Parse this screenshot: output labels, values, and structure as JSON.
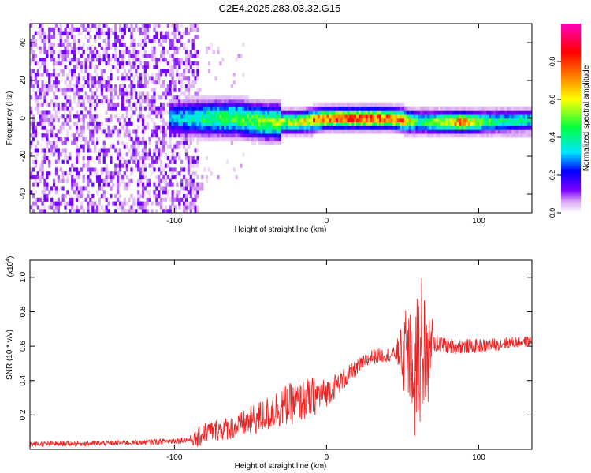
{
  "title": "C2E4.2025.283.03.32.G15",
  "chart_data": [
    {
      "type": "heatmap",
      "title": "C2E4.2025.283.03.32.G15",
      "xlabel": "Height of straight line (km)",
      "ylabel": "Frequency (Hz)",
      "xlim": [
        -195,
        135
      ],
      "ylim": [
        -50,
        50
      ],
      "x_ticks": [
        -100,
        0,
        100
      ],
      "y_ticks": [
        -40,
        -20,
        0,
        20,
        40
      ],
      "x_tick_labels": [
        "-100",
        "0",
        "100"
      ],
      "y_tick_labels": [
        "-40",
        "-20",
        "0",
        "20",
        "40"
      ],
      "colorbar": {
        "label": "Normalized spectral amplitude",
        "range": [
          0,
          1
        ],
        "ticks": [
          0.0,
          0.2,
          0.4,
          0.6,
          0.8
        ],
        "tick_labels": [
          "0.0",
          "0.2",
          "0.4",
          "0.6",
          "0.8"
        ],
        "colors": [
          "#ffffff",
          "#d9a6f2",
          "#7b00ff",
          "#0000ff",
          "#00e5ff",
          "#00ff40",
          "#ffff00",
          "#ff8000",
          "#ff0000",
          "#ff00c0"
        ]
      },
      "ridge": {
        "frequency_hz": [
          {
            "x": -100,
            "y": 0
          },
          {
            "x": -60,
            "y": 0
          },
          {
            "x": -40,
            "y": -2
          },
          {
            "x": -20,
            "y": -2
          },
          {
            "x": 0,
            "y": 0
          },
          {
            "x": 40,
            "y": 0
          },
          {
            "x": 60,
            "y": -2
          },
          {
            "x": 80,
            "y": -2
          },
          {
            "x": 100,
            "y": -2
          },
          {
            "x": 135,
            "y": -1
          }
        ],
        "peak_amplitude": [
          {
            "x": -100,
            "y": 0.35
          },
          {
            "x": -80,
            "y": 0.5
          },
          {
            "x": -60,
            "y": 0.55
          },
          {
            "x": -40,
            "y": 0.6
          },
          {
            "x": -20,
            "y": 0.7
          },
          {
            "x": -5,
            "y": 0.9
          },
          {
            "x": 10,
            "y": 0.95
          },
          {
            "x": 30,
            "y": 0.95
          },
          {
            "x": 50,
            "y": 0.85
          },
          {
            "x": 60,
            "y": 0.5
          },
          {
            "x": 70,
            "y": 0.6
          },
          {
            "x": 90,
            "y": 0.9
          },
          {
            "x": 100,
            "y": 0.6
          },
          {
            "x": 110,
            "y": 0.5
          },
          {
            "x": 135,
            "y": 0.45
          }
        ],
        "noise_region_x": [
          -195,
          -85
        ]
      }
    },
    {
      "type": "line",
      "xlabel": "Height of straight line (km)",
      "ylabel": "SNR (10 * v/v)",
      "y_multiplier_label": "(x10",
      "y_multiplier_exp": "4",
      "xlim": [
        -195,
        135
      ],
      "ylim": [
        0,
        1.1
      ],
      "x_ticks": [
        -100,
        0,
        100
      ],
      "x_tick_labels": [
        "-100",
        "0",
        "100"
      ],
      "y_ticks": [
        0.2,
        0.4,
        0.6,
        0.8,
        1.0
      ],
      "y_tick_labels": [
        "0.2",
        "0.4",
        "0.6",
        "0.8",
        "1.0"
      ],
      "color": "#ee2222",
      "series": [
        {
          "values": [
            {
              "x": -195,
              "y": 0.03
            },
            {
              "x": -150,
              "y": 0.035
            },
            {
              "x": -120,
              "y": 0.04
            },
            {
              "x": -100,
              "y": 0.05
            },
            {
              "x": -85,
              "y": 0.06
            },
            {
              "x": -80,
              "y": 0.1
            },
            {
              "x": -60,
              "y": 0.13
            },
            {
              "x": -40,
              "y": 0.2
            },
            {
              "x": -30,
              "y": 0.25
            },
            {
              "x": -20,
              "y": 0.27
            },
            {
              "x": -10,
              "y": 0.3
            },
            {
              "x": 0,
              "y": 0.33
            },
            {
              "x": 10,
              "y": 0.4
            },
            {
              "x": 20,
              "y": 0.47
            },
            {
              "x": 30,
              "y": 0.54
            },
            {
              "x": 40,
              "y": 0.55
            },
            {
              "x": 50,
              "y": 0.56
            },
            {
              "x": 55,
              "y": 0.6
            },
            {
              "x": 60,
              "y": 0.55
            },
            {
              "x": 65,
              "y": 0.62
            },
            {
              "x": 70,
              "y": 0.62
            },
            {
              "x": 80,
              "y": 0.6
            },
            {
              "x": 100,
              "y": 0.6
            },
            {
              "x": 120,
              "y": 0.62
            },
            {
              "x": 135,
              "y": 0.63
            }
          ],
          "noise": [
            {
              "x": -195,
              "y": 0.015
            },
            {
              "x": -120,
              "y": 0.015
            },
            {
              "x": -90,
              "y": 0.02
            },
            {
              "x": -85,
              "y": 0.06
            },
            {
              "x": -60,
              "y": 0.07
            },
            {
              "x": -30,
              "y": 0.12
            },
            {
              "x": -10,
              "y": 0.12
            },
            {
              "x": 0,
              "y": 0.08
            },
            {
              "x": 20,
              "y": 0.05
            },
            {
              "x": 45,
              "y": 0.04
            },
            {
              "x": 55,
              "y": 0.32
            },
            {
              "x": 62,
              "y": 0.45
            },
            {
              "x": 66,
              "y": 0.35
            },
            {
              "x": 70,
              "y": 0.05
            },
            {
              "x": 135,
              "y": 0.03
            }
          ]
        }
      ]
    }
  ]
}
